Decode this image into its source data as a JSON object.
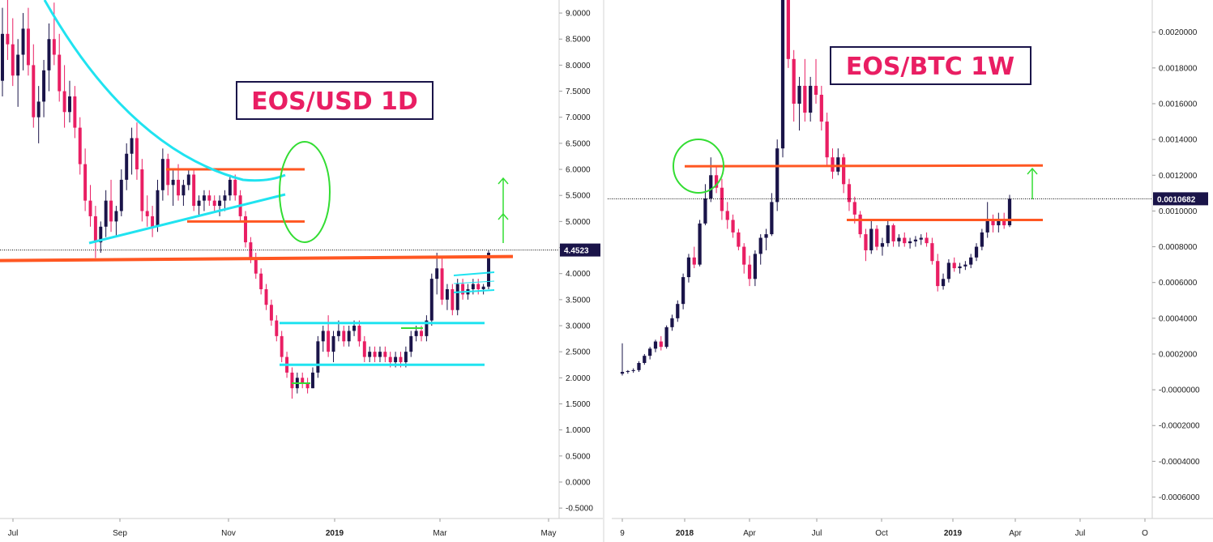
{
  "chart_data": [
    {
      "type": "candlestick",
      "title": "EOS/USD 1D",
      "x_tick_labels": [
        "Jul",
        "Sep",
        "Nov",
        "2019",
        "Mar",
        "May"
      ],
      "y_tick_labels": [
        "9.0000",
        "8.5000",
        "8.0000",
        "7.5000",
        "7.0000",
        "6.5000",
        "6.0000",
        "5.5000",
        "5.0000",
        "4.5000",
        "4.0000",
        "3.5000",
        "3.0000",
        "2.5000",
        "2.0000",
        "1.5000",
        "1.0000",
        "0.5000",
        "0.0000",
        "-0.5000"
      ],
      "ylim": [
        -0.7,
        9.25
      ],
      "last_price_label": "4.4523",
      "last_price": 4.4523,
      "colors": {
        "up": "#1a1449",
        "down": "#e91e63",
        "support": "#ff5722",
        "channel": "#20e3f0",
        "target": "#33dd33"
      },
      "candles": [
        [
          7.7,
          9.1,
          7.4,
          8.6
        ],
        [
          8.6,
          9.25,
          8.1,
          8.4
        ],
        [
          8.4,
          8.9,
          7.6,
          7.8
        ],
        [
          7.8,
          8.5,
          7.2,
          8.2
        ],
        [
          8.2,
          9.0,
          7.9,
          8.7
        ],
        [
          8.7,
          9.1,
          7.8,
          8.0
        ],
        [
          8.0,
          8.4,
          6.8,
          7.0
        ],
        [
          7.0,
          7.6,
          6.5,
          7.3
        ],
        [
          7.3,
          8.1,
          7.0,
          7.9
        ],
        [
          7.9,
          8.8,
          7.5,
          8.5
        ],
        [
          8.5,
          9.2,
          8.0,
          8.2
        ],
        [
          8.2,
          8.6,
          7.3,
          7.5
        ],
        [
          7.5,
          8.0,
          6.8,
          7.1
        ],
        [
          7.1,
          7.7,
          6.9,
          7.4
        ],
        [
          7.4,
          7.6,
          6.6,
          6.8
        ],
        [
          6.8,
          7.0,
          5.9,
          6.1
        ],
        [
          6.1,
          6.4,
          5.2,
          5.4
        ],
        [
          5.4,
          5.7,
          4.9,
          5.1
        ],
        [
          5.1,
          5.3,
          4.3,
          4.6
        ],
        [
          4.6,
          5.0,
          4.4,
          4.9
        ],
        [
          4.9,
          5.6,
          4.7,
          5.4
        ],
        [
          5.4,
          5.8,
          4.8,
          5.0
        ],
        [
          5.0,
          5.3,
          4.7,
          5.2
        ],
        [
          5.2,
          6.0,
          5.1,
          5.8
        ],
        [
          5.8,
          6.5,
          5.6,
          6.3
        ],
        [
          6.3,
          6.8,
          5.9,
          6.6
        ],
        [
          6.6,
          6.9,
          5.8,
          6.0
        ],
        [
          6.0,
          6.2,
          5.0,
          5.2
        ],
        [
          5.2,
          5.5,
          4.9,
          5.1
        ],
        [
          5.1,
          5.3,
          4.7,
          4.9
        ],
        [
          4.9,
          5.8,
          4.8,
          5.6
        ],
        [
          5.6,
          6.4,
          5.4,
          6.2
        ],
        [
          6.2,
          6.3,
          5.5,
          5.7
        ],
        [
          5.7,
          6.0,
          5.3,
          5.8
        ],
        [
          5.8,
          6.1,
          5.4,
          5.5
        ],
        [
          5.5,
          5.8,
          5.3,
          5.7
        ],
        [
          5.7,
          6.0,
          5.6,
          5.9
        ],
        [
          5.9,
          6.0,
          5.2,
          5.3
        ],
        [
          5.3,
          5.5,
          5.1,
          5.4
        ],
        [
          5.4,
          5.6,
          5.2,
          5.5
        ],
        [
          5.5,
          5.6,
          5.3,
          5.4
        ],
        [
          5.4,
          5.5,
          5.2,
          5.3
        ],
        [
          5.3,
          5.5,
          5.1,
          5.4
        ],
        [
          5.4,
          5.6,
          5.2,
          5.5
        ],
        [
          5.5,
          5.9,
          5.4,
          5.8
        ],
        [
          5.8,
          5.9,
          5.4,
          5.5
        ],
        [
          5.5,
          5.6,
          5.0,
          5.1
        ],
        [
          5.1,
          5.2,
          4.5,
          4.6
        ],
        [
          4.6,
          4.7,
          4.2,
          4.3
        ],
        [
          4.3,
          4.4,
          3.9,
          4.0
        ],
        [
          4.0,
          4.1,
          3.6,
          3.7
        ],
        [
          3.7,
          3.8,
          3.3,
          3.4
        ],
        [
          3.4,
          3.5,
          3.0,
          3.1
        ],
        [
          3.1,
          3.2,
          2.7,
          2.8
        ],
        [
          2.8,
          2.9,
          2.3,
          2.4
        ],
        [
          2.4,
          2.5,
          2.0,
          2.1
        ],
        [
          2.1,
          2.2,
          1.6,
          1.8
        ],
        [
          1.8,
          2.1,
          1.7,
          2.0
        ],
        [
          2.0,
          2.1,
          1.8,
          1.9
        ],
        [
          1.9,
          2.0,
          1.7,
          1.8
        ],
        [
          1.8,
          2.2,
          1.8,
          2.1
        ],
        [
          2.1,
          2.8,
          2.0,
          2.7
        ],
        [
          2.7,
          3.0,
          2.5,
          2.9
        ],
        [
          2.9,
          3.2,
          2.4,
          2.5
        ],
        [
          2.5,
          2.9,
          2.3,
          2.8
        ],
        [
          2.8,
          3.1,
          2.7,
          2.9
        ],
        [
          2.9,
          3.0,
          2.6,
          2.7
        ],
        [
          2.7,
          3.0,
          2.6,
          2.9
        ],
        [
          2.9,
          3.1,
          2.8,
          3.0
        ],
        [
          3.0,
          3.1,
          2.6,
          2.7
        ],
        [
          2.7,
          2.8,
          2.3,
          2.4
        ],
        [
          2.4,
          2.6,
          2.3,
          2.5
        ],
        [
          2.5,
          2.6,
          2.3,
          2.4
        ],
        [
          2.4,
          2.6,
          2.3,
          2.5
        ],
        [
          2.5,
          2.6,
          2.3,
          2.4
        ],
        [
          2.4,
          2.5,
          2.2,
          2.3
        ],
        [
          2.3,
          2.5,
          2.2,
          2.4
        ],
        [
          2.4,
          2.5,
          2.2,
          2.3
        ],
        [
          2.3,
          2.6,
          2.2,
          2.5
        ],
        [
          2.5,
          2.9,
          2.4,
          2.8
        ],
        [
          2.8,
          3.0,
          2.7,
          2.9
        ],
        [
          2.9,
          3.0,
          2.7,
          2.8
        ],
        [
          2.8,
          3.2,
          2.7,
          3.1
        ],
        [
          3.1,
          4.0,
          3.0,
          3.9
        ],
        [
          3.9,
          4.4,
          3.6,
          4.1
        ],
        [
          4.1,
          4.3,
          3.4,
          3.5
        ],
        [
          3.5,
          3.8,
          3.3,
          3.7
        ],
        [
          3.7,
          3.8,
          3.2,
          3.3
        ],
        [
          3.3,
          3.9,
          3.2,
          3.8
        ],
        [
          3.8,
          3.9,
          3.5,
          3.6
        ],
        [
          3.6,
          3.8,
          3.5,
          3.7
        ],
        [
          3.7,
          3.9,
          3.6,
          3.8
        ],
        [
          3.8,
          3.9,
          3.6,
          3.7
        ],
        [
          3.7,
          3.8,
          3.6,
          3.75
        ],
        [
          3.75,
          4.45,
          3.7,
          4.4
        ]
      ],
      "annotations": {
        "support_line": 4.25,
        "upper_box_top": 6.0,
        "upper_box_bottom": 5.0,
        "channel_high": 3.05,
        "channel_low": 2.25
      }
    },
    {
      "type": "candlestick",
      "title": "EOS/BTC 1W",
      "x_tick_labels": [
        "9",
        "2018",
        "Apr",
        "Jul",
        "Oct",
        "2019",
        "Apr",
        "Jul",
        "O"
      ],
      "y_tick_labels": [
        "0.0020000",
        "0.0018000",
        "0.0016000",
        "0.0014000",
        "0.0012000",
        "0.0010000",
        "0.0008000",
        "0.0006000",
        "0.0004000",
        "0.0002000",
        "-0.0000000",
        "-0.0002000",
        "-0.0004000",
        "-0.0006000"
      ],
      "ylim": [
        -0.00072,
        0.00218
      ],
      "last_price_label": "0.0010682",
      "last_price": 0.0010682,
      "colors": {
        "up": "#1a1449",
        "down": "#e91e63",
        "support": "#ff5722",
        "target": "#33dd33"
      },
      "candles": [
        [
          9e-05,
          0.00026,
          8e-05,
          0.0001
        ],
        [
          0.0001,
          0.00011,
          9e-05,
          0.000105
        ],
        [
          0.000105,
          0.00012,
          9.5e-05,
          0.00011
        ],
        [
          0.00011,
          0.00016,
          0.0001,
          0.00015
        ],
        [
          0.00015,
          0.0002,
          0.00014,
          0.00019
        ],
        [
          0.00019,
          0.00024,
          0.00017,
          0.00023
        ],
        [
          0.00023,
          0.00028,
          0.00021,
          0.00027
        ],
        [
          0.00027,
          0.0003,
          0.00022,
          0.00024
        ],
        [
          0.00024,
          0.00036,
          0.00023,
          0.00035
        ],
        [
          0.00035,
          0.00042,
          0.00033,
          0.0004
        ],
        [
          0.0004,
          0.0005,
          0.00038,
          0.00048
        ],
        [
          0.00048,
          0.00065,
          0.00045,
          0.00063
        ],
        [
          0.00063,
          0.00076,
          0.0006,
          0.00074
        ],
        [
          0.00074,
          0.0008,
          0.00068,
          0.0007
        ],
        [
          0.0007,
          0.00095,
          0.00069,
          0.00093
        ],
        [
          0.00093,
          0.00115,
          0.00092,
          0.00107
        ],
        [
          0.00107,
          0.0013,
          0.00105,
          0.0012
        ],
        [
          0.0012,
          0.00125,
          0.0011,
          0.00113
        ],
        [
          0.00113,
          0.00118,
          0.00095,
          0.001
        ],
        [
          0.001,
          0.00105,
          0.0009,
          0.00095
        ],
        [
          0.00095,
          0.00098,
          0.00085,
          0.00088
        ],
        [
          0.00088,
          0.0009,
          0.00078,
          0.0008
        ],
        [
          0.0008,
          0.00082,
          0.00065,
          0.0007
        ],
        [
          0.0007,
          0.00075,
          0.00058,
          0.00062
        ],
        [
          0.00062,
          0.00078,
          0.00058,
          0.00076
        ],
        [
          0.00076,
          0.00087,
          0.0007,
          0.00085
        ],
        [
          0.00085,
          0.0009,
          0.00078,
          0.00087
        ],
        [
          0.00087,
          0.0011,
          0.00086,
          0.00105
        ],
        [
          0.00105,
          0.0014,
          0.001,
          0.00135
        ],
        [
          0.00135,
          0.0023,
          0.0013,
          0.0022
        ],
        [
          0.0022,
          0.00225,
          0.0018,
          0.00185
        ],
        [
          0.00185,
          0.0019,
          0.0015,
          0.0016
        ],
        [
          0.0016,
          0.00175,
          0.00145,
          0.0017
        ],
        [
          0.0017,
          0.00185,
          0.0015,
          0.00155
        ],
        [
          0.00155,
          0.00175,
          0.0015,
          0.0017
        ],
        [
          0.0017,
          0.00185,
          0.0016,
          0.00165
        ],
        [
          0.00165,
          0.0017,
          0.00145,
          0.0015
        ],
        [
          0.0015,
          0.00155,
          0.00125,
          0.0013
        ],
        [
          0.0013,
          0.00135,
          0.00118,
          0.00122
        ],
        [
          0.00122,
          0.00135,
          0.0012,
          0.0013
        ],
        [
          0.0013,
          0.00132,
          0.0011,
          0.00115
        ],
        [
          0.00115,
          0.00118,
          0.001,
          0.00105
        ],
        [
          0.00105,
          0.00108,
          0.00093,
          0.00098
        ],
        [
          0.00098,
          0.001,
          0.00085,
          0.00087
        ],
        [
          0.00087,
          0.0009,
          0.00072,
          0.00078
        ],
        [
          0.00078,
          0.00095,
          0.00076,
          0.0009
        ],
        [
          0.0009,
          0.00092,
          0.00078,
          0.0008
        ],
        [
          0.0008,
          0.00085,
          0.00075,
          0.00082
        ],
        [
          0.00082,
          0.00095,
          0.0008,
          0.00092
        ],
        [
          0.00092,
          0.00093,
          0.0008,
          0.00083
        ],
        [
          0.00083,
          0.00087,
          0.0008,
          0.00085
        ],
        [
          0.00085,
          0.00088,
          0.0008,
          0.00082
        ],
        [
          0.00082,
          0.00085,
          0.00079,
          0.00083
        ],
        [
          0.00083,
          0.00086,
          0.0008,
          0.00084
        ],
        [
          0.00084,
          0.00087,
          0.00081,
          0.00085
        ],
        [
          0.00085,
          0.00088,
          0.0008,
          0.00082
        ],
        [
          0.00082,
          0.00085,
          0.0007,
          0.00072
        ],
        [
          0.00072,
          0.00076,
          0.00055,
          0.00058
        ],
        [
          0.00058,
          0.00065,
          0.00056,
          0.00062
        ],
        [
          0.00062,
          0.00073,
          0.0006,
          0.00071
        ],
        [
          0.00071,
          0.00074,
          0.00066,
          0.00068
        ],
        [
          0.00068,
          0.00071,
          0.00065,
          0.00069
        ],
        [
          0.00069,
          0.00072,
          0.00067,
          0.0007
        ],
        [
          0.0007,
          0.00076,
          0.00068,
          0.00074
        ],
        [
          0.00074,
          0.00082,
          0.00072,
          0.0008
        ],
        [
          0.0008,
          0.0009,
          0.00078,
          0.00088
        ],
        [
          0.00088,
          0.00105,
          0.00085,
          0.00095
        ],
        [
          0.00095,
          0.00098,
          0.00088,
          0.00092
        ],
        [
          0.00092,
          0.00099,
          0.00088,
          0.00095
        ],
        [
          0.00095,
          0.00099,
          0.0009,
          0.00092
        ],
        [
          0.00092,
          0.00109,
          0.00091,
          0.001068
        ]
      ],
      "annotations": {
        "upper_resistance": 0.00125,
        "lower_resistance": 0.00095
      }
    }
  ]
}
